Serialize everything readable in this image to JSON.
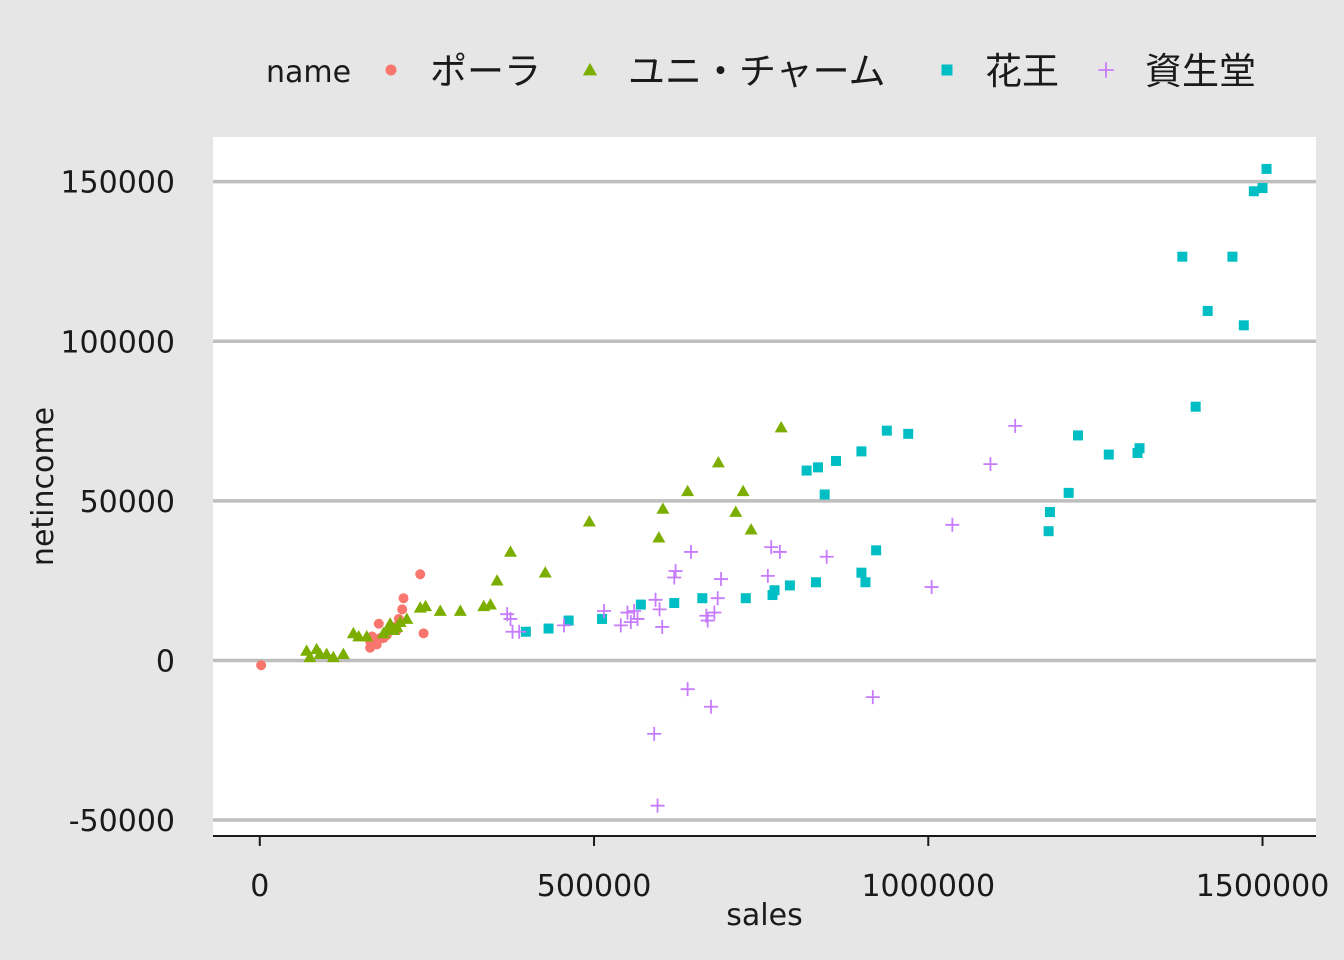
{
  "chart_data": {
    "type": "scatter",
    "title": "",
    "xlabel": "sales",
    "ylabel": "netincome",
    "xlim": [
      -70000,
      1580000
    ],
    "ylim": [
      -55000,
      164000
    ],
    "x_ticks": [
      0,
      500000,
      1000000,
      1500000
    ],
    "x_tick_labels": [
      "0",
      "500000",
      "1000000",
      "1500000"
    ],
    "y_ticks": [
      -50000,
      0,
      50000,
      100000,
      150000
    ],
    "y_tick_labels": [
      "-50000",
      "0",
      "50000",
      "100000",
      "150000"
    ],
    "grid": "horizontal",
    "legend": {
      "title": "name",
      "position": "top"
    },
    "series": [
      {
        "name": "ポーラ",
        "marker": "circle",
        "color": "#F8766D",
        "points": [
          [
            2000,
            -1500
          ],
          [
            165000,
            4000
          ],
          [
            165000,
            6000
          ],
          [
            168000,
            7500
          ],
          [
            175000,
            5000
          ],
          [
            178000,
            11500
          ],
          [
            180000,
            7000
          ],
          [
            185000,
            7000
          ],
          [
            190000,
            8000
          ],
          [
            195000,
            10000
          ],
          [
            200000,
            10500
          ],
          [
            205000,
            9500
          ],
          [
            208000,
            13000
          ],
          [
            210000,
            12000
          ],
          [
            213000,
            16000
          ],
          [
            215000,
            19500
          ],
          [
            240000,
            27000
          ],
          [
            245000,
            8500
          ]
        ]
      },
      {
        "name": "ユニ・チャーム",
        "marker": "triangle",
        "color": "#7CAE00",
        "points": [
          [
            70000,
            3000
          ],
          [
            75000,
            1000
          ],
          [
            85000,
            3500
          ],
          [
            90000,
            2000
          ],
          [
            100000,
            2000
          ],
          [
            110000,
            1000
          ],
          [
            125000,
            2000
          ],
          [
            140000,
            8500
          ],
          [
            148000,
            7500
          ],
          [
            160000,
            7500
          ],
          [
            185000,
            8500
          ],
          [
            190000,
            9500
          ],
          [
            195000,
            11500
          ],
          [
            200000,
            9500
          ],
          [
            205000,
            10500
          ],
          [
            210000,
            12000
          ],
          [
            220000,
            13000
          ],
          [
            240000,
            16500
          ],
          [
            248000,
            17000
          ],
          [
            270000,
            15500
          ],
          [
            300000,
            15500
          ],
          [
            335000,
            17000
          ],
          [
            345000,
            17500
          ],
          [
            355000,
            25000
          ],
          [
            375000,
            34000
          ],
          [
            427000,
            27500
          ],
          [
            493000,
            43500
          ],
          [
            597000,
            38500
          ],
          [
            603000,
            47500
          ],
          [
            640000,
            53000
          ],
          [
            686000,
            62000
          ],
          [
            712000,
            46500
          ],
          [
            723000,
            53000
          ],
          [
            735000,
            41000
          ],
          [
            780000,
            73000
          ]
        ]
      },
      {
        "name": "花王",
        "marker": "square",
        "color": "#00BFC4",
        "points": [
          [
            398000,
            9000
          ],
          [
            432000,
            10000
          ],
          [
            462000,
            12500
          ],
          [
            512000,
            13000
          ],
          [
            570000,
            17500
          ],
          [
            620000,
            18000
          ],
          [
            662000,
            19500
          ],
          [
            727000,
            19500
          ],
          [
            767000,
            20500
          ],
          [
            770000,
            22000
          ],
          [
            793000,
            23500
          ],
          [
            832000,
            24500
          ],
          [
            818000,
            59500
          ],
          [
            835000,
            60500
          ],
          [
            845000,
            52000
          ],
          [
            862000,
            62500
          ],
          [
            900000,
            65500
          ],
          [
            900000,
            27500
          ],
          [
            906000,
            24500
          ],
          [
            922000,
            34500
          ],
          [
            938000,
            72000
          ],
          [
            970000,
            71000
          ],
          [
            1180000,
            40500
          ],
          [
            1182000,
            46500
          ],
          [
            1210000,
            52500
          ],
          [
            1224000,
            70500
          ],
          [
            1270000,
            64500
          ],
          [
            1313000,
            65000
          ],
          [
            1316000,
            66500
          ],
          [
            1380000,
            126500
          ],
          [
            1400000,
            79500
          ],
          [
            1418000,
            109500
          ],
          [
            1455000,
            126500
          ],
          [
            1472000,
            105000
          ],
          [
            1487000,
            147000
          ],
          [
            1500000,
            148000
          ],
          [
            1506000,
            154000
          ]
        ]
      },
      {
        "name": "資生堂",
        "marker": "plus",
        "color": "#C77CFF",
        "points": [
          [
            370000,
            14500
          ],
          [
            375000,
            13000
          ],
          [
            378000,
            9000
          ],
          [
            388000,
            9000
          ],
          [
            455000,
            11000
          ],
          [
            515000,
            15500
          ],
          [
            540000,
            11000
          ],
          [
            550000,
            15000
          ],
          [
            555000,
            12000
          ],
          [
            560000,
            15500
          ],
          [
            565000,
            13000
          ],
          [
            590000,
            -23000
          ],
          [
            592000,
            19000
          ],
          [
            595000,
            -45500
          ],
          [
            598000,
            16000
          ],
          [
            602000,
            10500
          ],
          [
            620000,
            26000
          ],
          [
            622000,
            28000
          ],
          [
            640000,
            -9000
          ],
          [
            645000,
            34000
          ],
          [
            668000,
            14000
          ],
          [
            670000,
            12500
          ],
          [
            675000,
            -14500
          ],
          [
            680000,
            15000
          ],
          [
            685000,
            19500
          ],
          [
            690000,
            25500
          ],
          [
            760000,
            26500
          ],
          [
            765000,
            35500
          ],
          [
            778000,
            34000
          ],
          [
            848000,
            32500
          ],
          [
            917000,
            -11500
          ],
          [
            1005000,
            23000
          ],
          [
            1036000,
            42500
          ],
          [
            1093000,
            61500
          ],
          [
            1130000,
            73500
          ]
        ]
      }
    ]
  }
}
